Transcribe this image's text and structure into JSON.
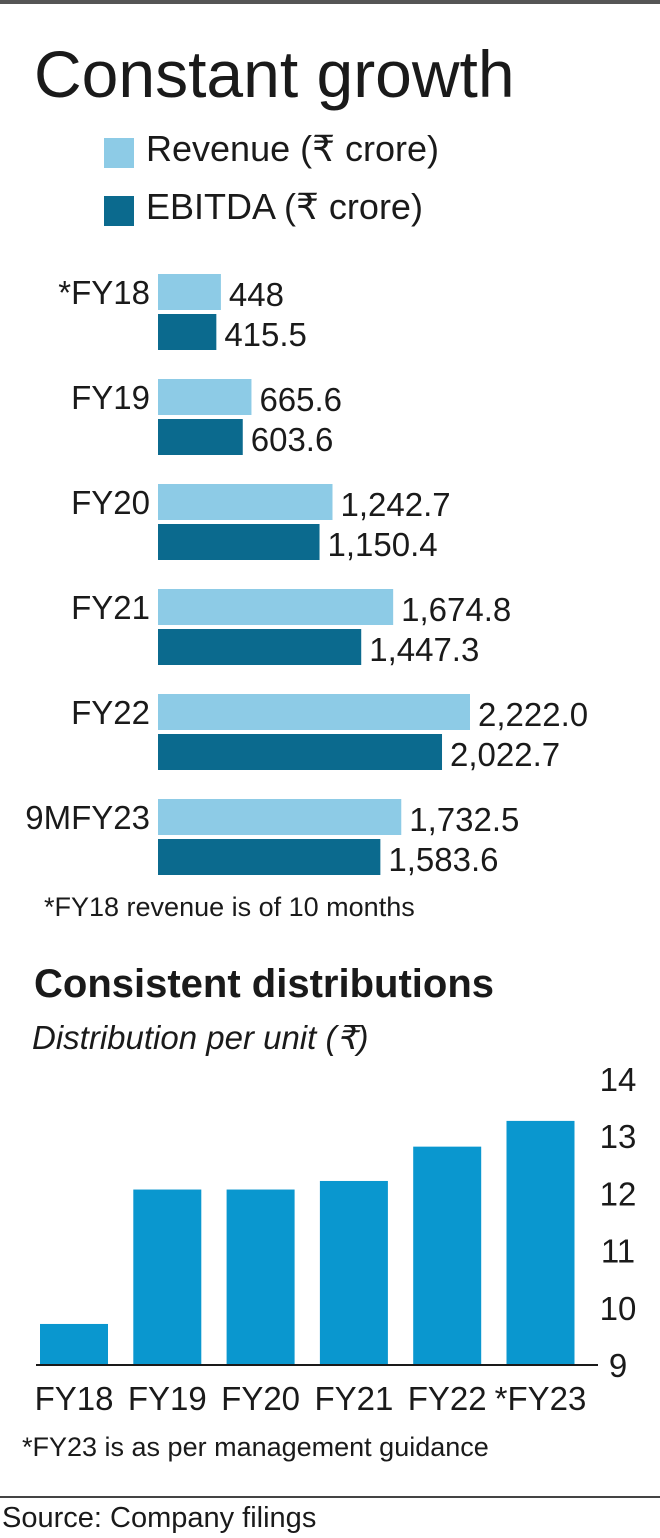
{
  "title": "Constant growth",
  "legend": [
    {
      "label": "Revenue (₹ crore)",
      "color": "#8dcbe6"
    },
    {
      "label": "EBITDA (₹ crore)",
      "color": "#0b6a8e"
    }
  ],
  "chart1_note": "*FY18 revenue is of 10 months",
  "subtitle": "Consistent distributions",
  "unit_label": "Distribution per unit (₹)",
  "chart2_note": "*FY23 is as per management guidance",
  "source": "Source: Company filings",
  "chart_data": [
    {
      "type": "bar",
      "orientation": "horizontal",
      "title": "Constant growth",
      "categories": [
        "*FY18",
        "FY19",
        "FY20",
        "FY21",
        "FY22",
        "9MFY23"
      ],
      "series": [
        {
          "name": "Revenue (₹ crore)",
          "color": "#8dcbe6",
          "values": [
            448,
            665.6,
            1242.7,
            1674.8,
            2222.0,
            1732.5
          ],
          "labels": [
            "448",
            "665.6",
            "1,242.7",
            "1,674.8",
            "2,222.0",
            "1,732.5"
          ]
        },
        {
          "name": "EBITDA (₹ crore)",
          "color": "#0b6a8e",
          "values": [
            415.5,
            603.6,
            1150.4,
            1447.3,
            2022.7,
            1583.6
          ],
          "labels": [
            "415.5",
            "603.6",
            "1,150.4",
            "1,447.3",
            "2,022.7",
            "1,583.6"
          ]
        }
      ],
      "xlim": [
        0,
        2222.0
      ],
      "grid": false
    },
    {
      "type": "bar",
      "title": "Consistent distributions",
      "ylabel": "Distribution per unit (₹)",
      "categories": [
        "FY18",
        "FY19",
        "FY20",
        "FY21",
        "FY22",
        "*FY23"
      ],
      "values": [
        9.7,
        12.05,
        12.05,
        12.2,
        12.8,
        13.25
      ],
      "color": "#0a97cf",
      "ylim": [
        9,
        14
      ],
      "yticks": [
        "9",
        "10",
        "11",
        "12",
        "13",
        "14"
      ],
      "y_axis_side": "right",
      "grid": false
    }
  ]
}
